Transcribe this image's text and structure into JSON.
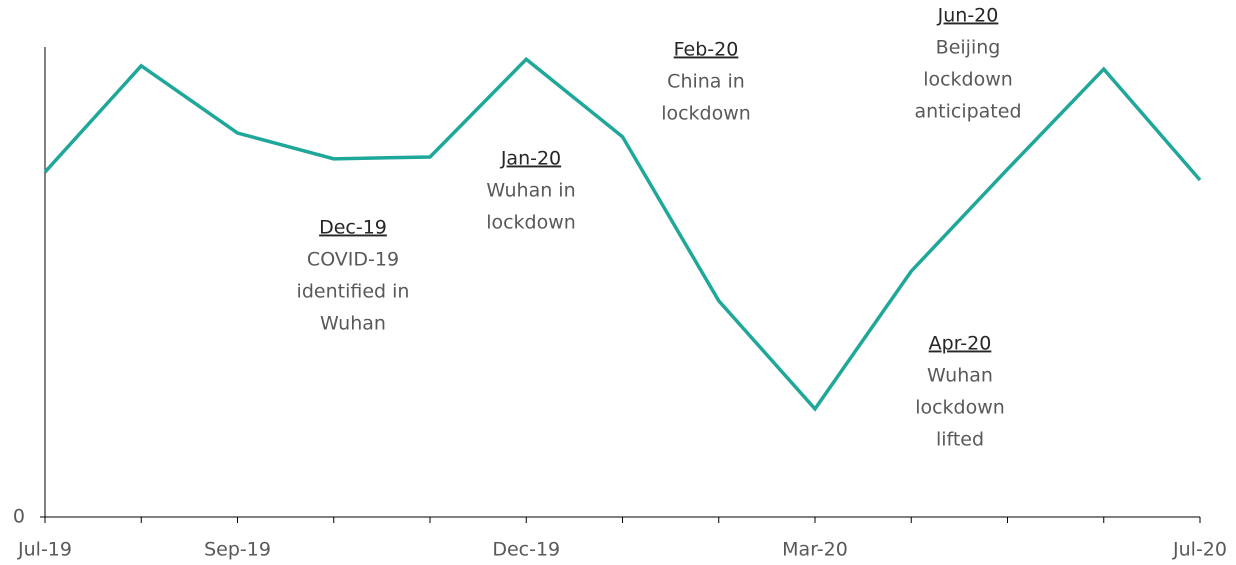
{
  "chart_data": {
    "type": "line",
    "categories": [
      "Jul-19",
      null,
      "Sep-19",
      null,
      null,
      "Dec-19",
      null,
      null,
      "Mar-20",
      null,
      null,
      null,
      "Jul-20"
    ],
    "series": [
      {
        "color": "#1fa89a",
        "values": [
          73.4,
          96,
          81.7,
          76.2,
          76.6,
          97.4,
          80.9,
          46,
          23,
          52.3,
          74,
          95.3,
          71.7
        ]
      }
    ],
    "ylim": [
      0,
      100
    ],
    "yticks": [
      0
    ],
    "annotations": [
      {
        "label": "Dec-19",
        "text": [
          "COVID-19",
          "identified in",
          "Wuhan"
        ]
      },
      {
        "label": "Jan-20",
        "text": [
          "Wuhan in",
          "lockdown"
        ]
      },
      {
        "label": "Feb-20",
        "text": [
          "China in",
          "lockdown"
        ]
      },
      {
        "label": "Jun-20",
        "text": [
          "Beijing",
          "lockdown",
          "anticipated"
        ]
      },
      {
        "label": "Apr-20",
        "text": [
          "Wuhan",
          "lockdown",
          "lifted"
        ]
      }
    ]
  }
}
